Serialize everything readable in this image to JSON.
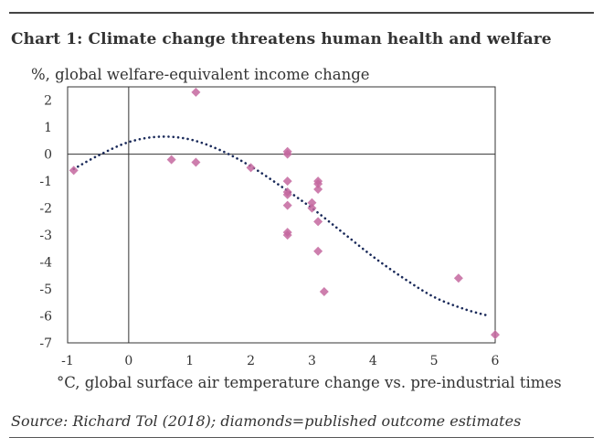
{
  "chart_data": {
    "type": "scatter",
    "title": "Chart 1: Climate change threatens human health and welfare",
    "ylabel": "%, global welfare-equivalent income change",
    "xlabel": "°C, global surface air temperature change vs. pre-industrial times",
    "source": "Source: Richard Tol (2018); diamonds=published outcome estimates",
    "xlim": [
      -1,
      6
    ],
    "ylim": [
      -7,
      2.5
    ],
    "xticks": [
      "-1",
      "0",
      "1",
      "2",
      "3",
      "4",
      "5",
      "6"
    ],
    "yticks": [
      "2",
      "1",
      "0",
      "-1",
      "-2",
      "-3",
      "-4",
      "-5",
      "-6",
      "-7"
    ],
    "series": [
      {
        "name": "published outcome estimates",
        "marker": "diamond",
        "color": "#c4679f",
        "points": [
          {
            "x": -0.9,
            "y": -0.6
          },
          {
            "x": 0.7,
            "y": -0.2
          },
          {
            "x": 1.1,
            "y": 2.3
          },
          {
            "x": 1.1,
            "y": -0.3
          },
          {
            "x": 2.0,
            "y": -0.5
          },
          {
            "x": 2.6,
            "y": 0.1
          },
          {
            "x": 2.6,
            "y": 0.0
          },
          {
            "x": 2.6,
            "y": -1.0
          },
          {
            "x": 2.6,
            "y": -1.4
          },
          {
            "x": 2.6,
            "y": -1.5
          },
          {
            "x": 2.6,
            "y": -1.9
          },
          {
            "x": 2.6,
            "y": -2.9
          },
          {
            "x": 2.6,
            "y": -3.0
          },
          {
            "x": 3.0,
            "y": -1.8
          },
          {
            "x": 3.0,
            "y": -2.0
          },
          {
            "x": 3.1,
            "y": -1.0
          },
          {
            "x": 3.1,
            "y": -1.1
          },
          {
            "x": 3.1,
            "y": -1.3
          },
          {
            "x": 3.1,
            "y": -2.5
          },
          {
            "x": 3.1,
            "y": -3.6
          },
          {
            "x": 3.2,
            "y": -5.1
          },
          {
            "x": 5.4,
            "y": -4.6
          },
          {
            "x": 6.0,
            "y": -6.7
          }
        ]
      },
      {
        "name": "fitted curve",
        "style": "dotted",
        "color": "#1a2a5a",
        "points": [
          {
            "x": -0.9,
            "y": -0.55
          },
          {
            "x": -0.5,
            "y": -0.05
          },
          {
            "x": 0.0,
            "y": 0.45
          },
          {
            "x": 0.5,
            "y": 0.65
          },
          {
            "x": 1.0,
            "y": 0.55
          },
          {
            "x": 1.5,
            "y": 0.15
          },
          {
            "x": 2.0,
            "y": -0.45
          },
          {
            "x": 2.5,
            "y": -1.2
          },
          {
            "x": 3.0,
            "y": -2.0
          },
          {
            "x": 3.5,
            "y": -2.9
          },
          {
            "x": 4.0,
            "y": -3.8
          },
          {
            "x": 4.5,
            "y": -4.6
          },
          {
            "x": 5.0,
            "y": -5.3
          },
          {
            "x": 5.5,
            "y": -5.75
          },
          {
            "x": 5.9,
            "y": -6.0
          }
        ]
      }
    ]
  }
}
